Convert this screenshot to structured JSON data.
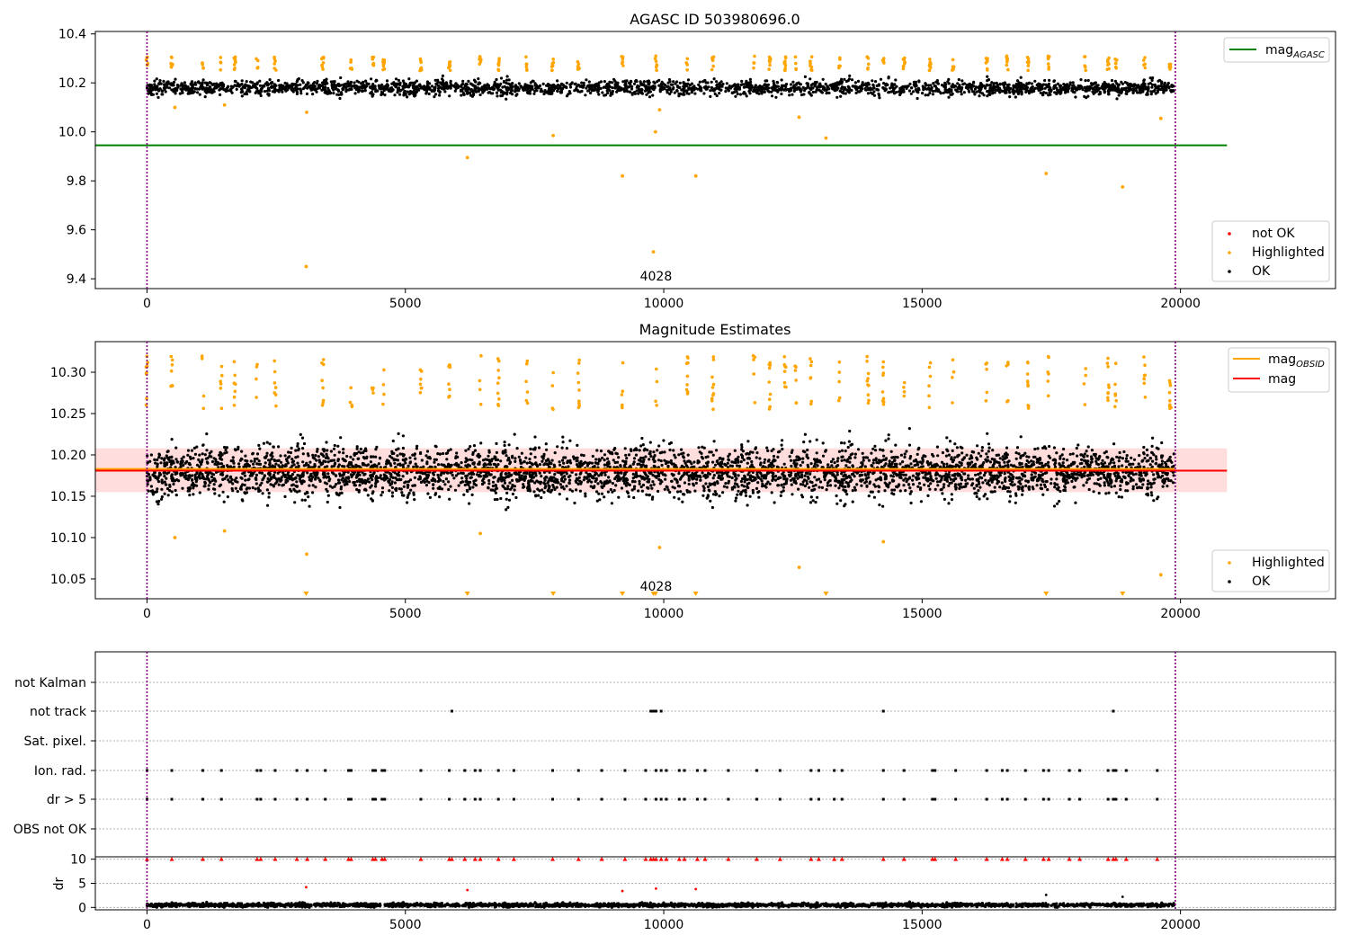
{
  "colors": {
    "ok": "#000000",
    "highlighted": "#ffa500",
    "not_ok": "#ff0000",
    "mag_agasc": "#008000",
    "mag_obsid": "#ffa500",
    "mag": "#ff0000",
    "band": "#ffb3b3",
    "observation_boundary": "#800080",
    "grid": "#b0b0b0"
  },
  "chart_data": [
    {
      "type": "scatter",
      "title": "AGASC ID 503980696.0",
      "xlim": [
        -1000,
        23000
      ],
      "ylim": [
        9.36,
        10.41
      ],
      "xticks": [
        0,
        5000,
        10000,
        15000,
        20000
      ],
      "yticks": [
        9.4,
        9.6,
        9.8,
        10.0,
        10.2,
        10.4
      ],
      "ytick_labels": [
        "9.4",
        "9.6",
        "9.8",
        "10.0",
        "10.2",
        "10.4"
      ],
      "observation_boundaries": [
        0,
        19900
      ],
      "observation_label": "4028",
      "observation_label_x": 9850,
      "mag_agasc": 9.945,
      "mag_agasc_x_range": [
        -1000,
        20900
      ],
      "ok_band": {
        "center": 10.18,
        "spread": 0.035
      },
      "highlighted_points": [
        {
          "x": 3080,
          "y": 9.45
        },
        {
          "x": 9800,
          "y": 9.51
        },
        {
          "x": 6200,
          "y": 9.895
        },
        {
          "x": 7860,
          "y": 9.985
        },
        {
          "x": 9840,
          "y": 10.0
        },
        {
          "x": 9200,
          "y": 9.82
        },
        {
          "x": 10620,
          "y": 9.82
        },
        {
          "x": 13140,
          "y": 9.975
        },
        {
          "x": 17400,
          "y": 9.83
        },
        {
          "x": 18880,
          "y": 9.775
        },
        {
          "x": 19620,
          "y": 10.055
        },
        {
          "x": 12620,
          "y": 10.06
        },
        {
          "x": 3090,
          "y": 10.08
        },
        {
          "x": 9920,
          "y": 10.09
        },
        {
          "x": 1500,
          "y": 10.11
        },
        {
          "x": 540,
          "y": 10.1
        }
      ],
      "legend_lines": [
        {
          "label": "mag",
          "subscript": "AGASC",
          "color_key": "mag_agasc"
        }
      ],
      "legend_points": [
        {
          "label": "not OK",
          "color_key": "not_ok"
        },
        {
          "label": "Highlighted",
          "color_key": "highlighted"
        },
        {
          "label": "OK",
          "color_key": "ok"
        }
      ]
    },
    {
      "type": "scatter",
      "title": "Magnitude Estimates",
      "xlim": [
        -1000,
        23000
      ],
      "ylim": [
        10.026,
        10.337
      ],
      "xticks": [
        0,
        5000,
        10000,
        15000,
        20000
      ],
      "yticks": [
        10.05,
        10.1,
        10.15,
        10.2,
        10.25,
        10.3
      ],
      "ytick_labels": [
        "10.05",
        "10.10",
        "10.15",
        "10.20",
        "10.25",
        "10.30"
      ],
      "observation_boundaries": [
        0,
        19900
      ],
      "observation_label": "4028",
      "observation_label_x": 9850,
      "mag_obsid": 10.183,
      "mag": 10.181,
      "mag_band": [
        10.155,
        10.208
      ],
      "mag_x_range": [
        -1000,
        20900
      ],
      "ok_band": {
        "center": 10.18,
        "spread": 0.035
      },
      "highlighted_points": [
        {
          "x": 3090,
          "y": 10.08
        },
        {
          "x": 12620,
          "y": 10.064
        },
        {
          "x": 19620,
          "y": 10.055
        },
        {
          "x": 540,
          "y": 10.1
        },
        {
          "x": 1500,
          "y": 10.108
        },
        {
          "x": 9920,
          "y": 10.088
        },
        {
          "x": 6450,
          "y": 10.105
        },
        {
          "x": 14250,
          "y": 10.095
        }
      ],
      "off_scale_markers": [
        3080,
        6200,
        7860,
        9200,
        9800,
        9840,
        10620,
        13140,
        17400,
        18880
      ],
      "legend_lines": [
        {
          "label": "mag",
          "subscript": "OBSID",
          "color_key": "mag_obsid"
        },
        {
          "label": "mag",
          "subscript": "",
          "color_key": "mag"
        }
      ],
      "legend_points": [
        {
          "label": "Highlighted",
          "color_key": "highlighted"
        },
        {
          "label": "OK",
          "color_key": "ok"
        }
      ]
    },
    {
      "type": "scatter",
      "title": "",
      "xlim": [
        -1000,
        23000
      ],
      "xticks": [
        0,
        5000,
        10000,
        15000,
        20000
      ],
      "observation_boundaries": [
        0,
        19900
      ],
      "flag_rows": [
        "not Kalman",
        "not track",
        "Sat. pixel.",
        "Ion. rad.",
        "dr > 5",
        "OBS not OK"
      ],
      "flag_events": {
        "not Kalman": [],
        "not track": [
          5900,
          9750,
          9800,
          9850,
          9950,
          14250,
          18700
        ],
        "Sat. pixel.": [],
        "Ion. rad.": [
          0,
          480,
          1080,
          1440,
          2130,
          2200,
          2480,
          2900,
          3100,
          3450,
          3900,
          3950,
          4370,
          4420,
          4550,
          4600,
          5300,
          5850,
          6150,
          6350,
          6450,
          6800,
          7100,
          7850,
          8350,
          8800,
          9250,
          9650,
          9850,
          9950,
          10050,
          10300,
          10400,
          10650,
          10800,
          11250,
          11800,
          12250,
          12850,
          13000,
          13300,
          13450,
          14250,
          14650,
          15200,
          15250,
          15650,
          16250,
          16550,
          16650,
          17000,
          17350,
          17450,
          17850,
          18050,
          18600,
          18700,
          18750,
          18950,
          19550
        ],
        "dr > 5": [
          0,
          480,
          1080,
          1440,
          2130,
          2200,
          2480,
          2900,
          3100,
          3450,
          3900,
          3950,
          4370,
          4420,
          4550,
          4600,
          5300,
          5850,
          6150,
          6350,
          6450,
          6800,
          7100,
          7850,
          8350,
          8800,
          9250,
          9650,
          9850,
          9950,
          10050,
          10300,
          10400,
          10650,
          10800,
          11250,
          11800,
          12250,
          12850,
          13000,
          13300,
          13450,
          14250,
          14650,
          15200,
          15250,
          15650,
          16250,
          16550,
          16650,
          17000,
          17350,
          17450,
          17850,
          18050,
          18600,
          18700,
          18750,
          18950,
          19550
        ],
        "OBS not OK": []
      }
    },
    {
      "type": "scatter",
      "title": "",
      "ylabel": "dr",
      "xlim": [
        -1000,
        23000
      ],
      "ylim": [
        -0.5,
        10.5
      ],
      "xticks": [
        0,
        5000,
        10000,
        15000,
        20000
      ],
      "yticks": [
        0,
        5,
        10
      ],
      "ytick_labels": [
        "0",
        "5",
        "10"
      ],
      "observation_boundaries": [
        0,
        19900
      ],
      "ok_band": {
        "center": 0.5,
        "spread": 0.45
      },
      "clipped_dr_x": [
        0,
        480,
        1080,
        1440,
        2130,
        2200,
        2480,
        2900,
        3100,
        3450,
        3900,
        3950,
        4370,
        4420,
        4550,
        4600,
        5300,
        5850,
        5900,
        6150,
        6350,
        6450,
        6800,
        7100,
        7850,
        8350,
        8800,
        9250,
        9650,
        9750,
        9800,
        9850,
        9950,
        10050,
        10300,
        10400,
        10650,
        10800,
        11250,
        11800,
        12250,
        12850,
        13000,
        13300,
        13450,
        14250,
        14650,
        15200,
        15250,
        15650,
        16250,
        16550,
        16650,
        17000,
        17350,
        17450,
        17850,
        18050,
        18600,
        18700,
        18750,
        18950,
        19550
      ],
      "red_points": [
        {
          "x": 3080,
          "y": 4.2
        },
        {
          "x": 6200,
          "y": 3.6
        },
        {
          "x": 9200,
          "y": 3.4
        },
        {
          "x": 9850,
          "y": 3.9
        },
        {
          "x": 10620,
          "y": 3.8
        }
      ],
      "outlier_points": [
        {
          "x": 17400,
          "y": 2.6
        },
        {
          "x": 18880,
          "y": 2.2
        }
      ]
    }
  ]
}
